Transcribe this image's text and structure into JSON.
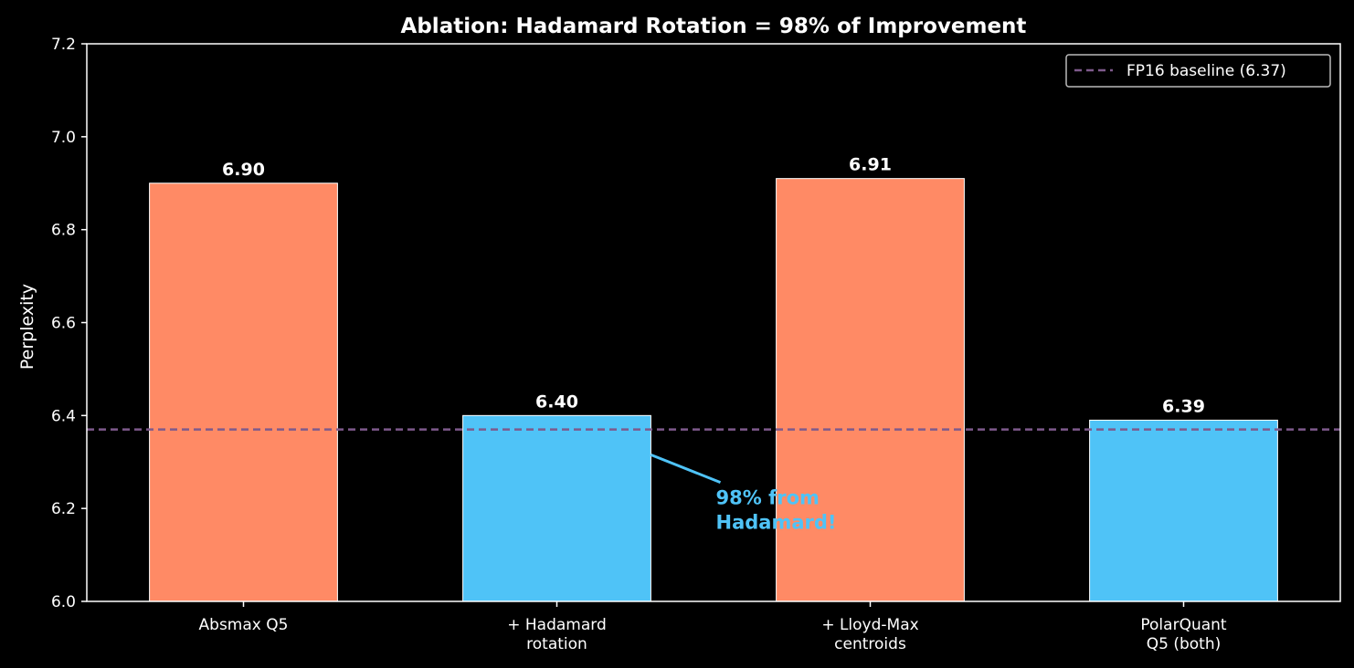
{
  "chart_data": {
    "type": "bar",
    "title": "Ablation: Hadamard Rotation = 98% of Improvement",
    "xlabel": "",
    "ylabel": "Perplexity",
    "ylim": [
      6.0,
      7.2
    ],
    "yticks": [
      "6.0",
      "6.2",
      "6.4",
      "6.6",
      "6.8",
      "7.0",
      "7.2"
    ],
    "categories": [
      [
        "Absmax Q5"
      ],
      [
        "+ Hadamard",
        "rotation"
      ],
      [
        "+ Lloyd-Max",
        "centroids"
      ],
      [
        "PolarQuant",
        "Q5 (both)"
      ]
    ],
    "values": [
      6.9,
      6.4,
      6.91,
      6.39
    ],
    "value_labels": [
      "6.90",
      "6.40",
      "6.91",
      "6.39"
    ],
    "bar_colors": [
      "#ff8a65",
      "#4fc3f7",
      "#ff8a65",
      "#4fc3f7"
    ],
    "baseline": {
      "value": 6.37,
      "label": "FP16 baseline (6.37)",
      "color": "#7e5a8c"
    },
    "annotation": {
      "lines": [
        "98% from",
        "Hadamard!"
      ],
      "color": "#4fc3f7",
      "target_category": 1
    },
    "legend_position": "top-right",
    "grid": false,
    "colors": {
      "background": "#000000",
      "axis": "#ffffff",
      "text": "#ffffff"
    }
  }
}
